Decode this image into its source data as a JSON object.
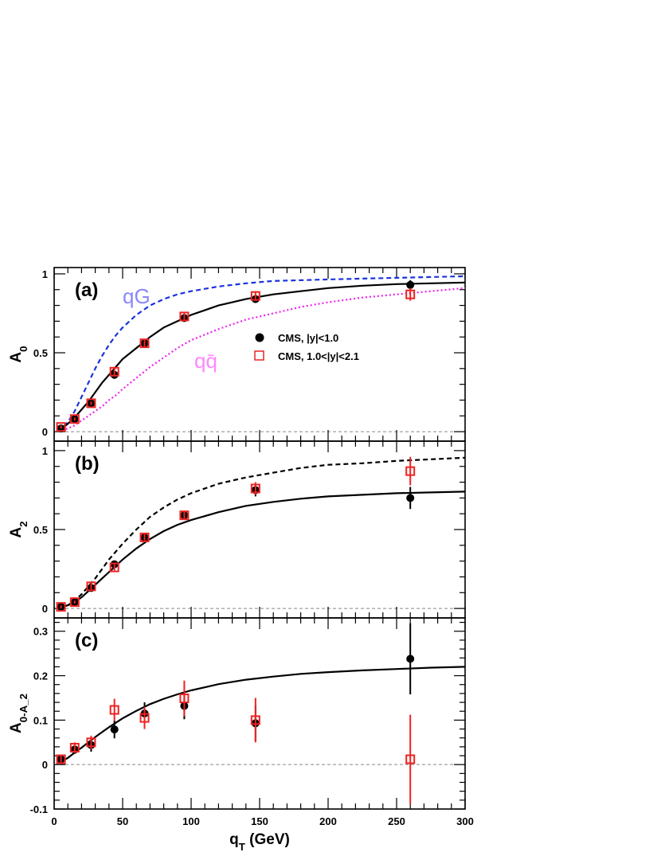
{
  "chart_data": {
    "type": "scatter",
    "xlabel": "q_T (GeV)",
    "xlim": [
      0,
      300
    ],
    "xticks": [
      "0",
      "50",
      "100",
      "150",
      "200",
      "250",
      "300"
    ],
    "colors": {
      "cms_central": "#000000",
      "cms_forward": "#ee2222",
      "qG": "#1a33dd",
      "qqbar": "#ee22ee",
      "fit": "#000000"
    },
    "legend": {
      "placement": "center-right of panel (a)",
      "entries": [
        {
          "label": "CMS, |y|<1.0",
          "marker": "filled-circle",
          "color": "#000000"
        },
        {
          "label": "CMS, 1.0<|y|<2.1",
          "marker": "open-square",
          "color": "#ee2222"
        }
      ]
    },
    "panels": [
      {
        "label": "(a)",
        "ylabel": "A_0",
        "ylim": [
          -0.06,
          1.04
        ],
        "yticks": [
          "0",
          "0.5",
          "1"
        ],
        "curves": [
          {
            "name": "qG",
            "style": "dashed",
            "color": "#1a33dd",
            "x": [
              3,
              10,
              15,
              20,
              25,
              30,
              35,
              40,
              45,
              50,
              60,
              70,
              80,
              90,
              100,
              120,
              140,
              160,
              180,
              200,
              225,
              250,
              275,
              300
            ],
            "y": [
              0,
              0.06,
              0.13,
              0.22,
              0.31,
              0.4,
              0.48,
              0.55,
              0.61,
              0.66,
              0.74,
              0.8,
              0.84,
              0.87,
              0.89,
              0.92,
              0.94,
              0.955,
              0.96,
              0.965,
              0.97,
              0.975,
              0.98,
              0.985
            ]
          },
          {
            "name": "qq̄",
            "style": "dotted",
            "color": "#ee22ee",
            "x": [
              3,
              10,
              15,
              20,
              25,
              30,
              35,
              40,
              45,
              50,
              60,
              70,
              80,
              90,
              100,
              120,
              140,
              160,
              180,
              200,
              225,
              250,
              275,
              300
            ],
            "y": [
              0,
              0.02,
              0.04,
              0.07,
              0.1,
              0.13,
              0.16,
              0.2,
              0.23,
              0.27,
              0.34,
              0.41,
              0.47,
              0.53,
              0.58,
              0.65,
              0.71,
              0.75,
              0.79,
              0.82,
              0.85,
              0.87,
              0.89,
              0.91
            ]
          },
          {
            "name": "",
            "style": "solid",
            "color": "#000000",
            "x": [
              3,
              10,
              15,
              20,
              25,
              30,
              35,
              40,
              45,
              50,
              60,
              70,
              80,
              90,
              100,
              120,
              140,
              160,
              180,
              200,
              225,
              250,
              275,
              300
            ],
            "y": [
              0,
              0.05,
              0.09,
              0.14,
              0.19,
              0.25,
              0.31,
              0.36,
              0.41,
              0.46,
              0.53,
              0.6,
              0.66,
              0.7,
              0.74,
              0.8,
              0.84,
              0.87,
              0.89,
              0.91,
              0.925,
              0.935,
              0.94,
              0.945
            ]
          }
        ],
        "series": [
          {
            "name": "CMS, |y|<1.0",
            "marker": "filled-circle",
            "color": "#000000",
            "points": [
              {
                "x": 5,
                "y": 0.02,
                "err": 0.01
              },
              {
                "x": 15,
                "y": 0.08,
                "err": 0.01
              },
              {
                "x": 27,
                "y": 0.18,
                "err": 0.01
              },
              {
                "x": 44,
                "y": 0.36,
                "err": 0.02
              },
              {
                "x": 66,
                "y": 0.56,
                "err": 0.02
              },
              {
                "x": 95,
                "y": 0.72,
                "err": 0.02
              },
              {
                "x": 147,
                "y": 0.84,
                "err": 0.02
              },
              {
                "x": 260,
                "y": 0.93,
                "err": 0.03
              }
            ]
          },
          {
            "name": "CMS, 1.0<|y|<2.1",
            "marker": "open-square",
            "color": "#ee2222",
            "points": [
              {
                "x": 5,
                "y": 0.03,
                "err": 0.01
              },
              {
                "x": 15,
                "y": 0.08,
                "err": 0.01
              },
              {
                "x": 27,
                "y": 0.18,
                "err": 0.01
              },
              {
                "x": 44,
                "y": 0.38,
                "err": 0.02
              },
              {
                "x": 66,
                "y": 0.56,
                "err": 0.02
              },
              {
                "x": 95,
                "y": 0.73,
                "err": 0.02
              },
              {
                "x": 147,
                "y": 0.86,
                "err": 0.03
              },
              {
                "x": 260,
                "y": 0.87,
                "err": 0.04
              }
            ]
          }
        ]
      },
      {
        "label": "(b)",
        "ylabel": "A_2",
        "ylim": [
          -0.06,
          1.06
        ],
        "yticks": [
          "0",
          "0.5",
          "1"
        ],
        "curves": [
          {
            "name": "",
            "style": "dashed",
            "color": "#000000",
            "x": [
              3,
              10,
              15,
              20,
              25,
              30,
              35,
              40,
              45,
              50,
              60,
              70,
              80,
              90,
              100,
              120,
              140,
              160,
              180,
              200,
              225,
              250,
              275,
              300
            ],
            "y": [
              0,
              0.02,
              0.05,
              0.09,
              0.14,
              0.19,
              0.25,
              0.31,
              0.36,
              0.41,
              0.5,
              0.58,
              0.64,
              0.69,
              0.73,
              0.79,
              0.83,
              0.86,
              0.89,
              0.91,
              0.92,
              0.935,
              0.945,
              0.955
            ]
          },
          {
            "name": "",
            "style": "solid",
            "color": "#000000",
            "x": [
              3,
              10,
              15,
              20,
              25,
              30,
              35,
              40,
              45,
              50,
              60,
              70,
              80,
              90,
              100,
              120,
              140,
              160,
              180,
              200,
              225,
              250,
              275,
              300
            ],
            "y": [
              0,
              0.02,
              0.04,
              0.07,
              0.11,
              0.15,
              0.19,
              0.23,
              0.27,
              0.31,
              0.38,
              0.44,
              0.49,
              0.53,
              0.56,
              0.61,
              0.65,
              0.675,
              0.695,
              0.71,
              0.72,
              0.73,
              0.735,
              0.74
            ]
          }
        ],
        "series": [
          {
            "name": "CMS, |y|<1.0",
            "marker": "filled-circle",
            "color": "#000000",
            "points": [
              {
                "x": 5,
                "y": 0.01,
                "err": 0.01
              },
              {
                "x": 15,
                "y": 0.04,
                "err": 0.01
              },
              {
                "x": 27,
                "y": 0.13,
                "err": 0.02
              },
              {
                "x": 44,
                "y": 0.28,
                "err": 0.02
              },
              {
                "x": 66,
                "y": 0.45,
                "err": 0.02
              },
              {
                "x": 95,
                "y": 0.59,
                "err": 0.03
              },
              {
                "x": 147,
                "y": 0.75,
                "err": 0.04
              },
              {
                "x": 260,
                "y": 0.7,
                "err": 0.07
              }
            ]
          },
          {
            "name": "CMS, 1.0<|y|<2.1",
            "marker": "open-square",
            "color": "#ee2222",
            "points": [
              {
                "x": 5,
                "y": 0.01,
                "err": 0.01
              },
              {
                "x": 15,
                "y": 0.04,
                "err": 0.01
              },
              {
                "x": 27,
                "y": 0.14,
                "err": 0.02
              },
              {
                "x": 44,
                "y": 0.26,
                "err": 0.02
              },
              {
                "x": 66,
                "y": 0.45,
                "err": 0.02
              },
              {
                "x": 95,
                "y": 0.59,
                "err": 0.03
              },
              {
                "x": 147,
                "y": 0.76,
                "err": 0.04
              },
              {
                "x": 260,
                "y": 0.87,
                "err": 0.09
              }
            ]
          }
        ]
      },
      {
        "label": "(c)",
        "ylabel": "A_0-A_2",
        "ylim": [
          -0.1,
          0.33
        ],
        "yticks": [
          "-0.1",
          "0",
          "0.1",
          "0.2",
          "0.3"
        ],
        "curves": [
          {
            "name": "",
            "style": "solid",
            "color": "#000000",
            "x": [
              3,
              10,
              15,
              20,
              25,
              30,
              35,
              40,
              45,
              50,
              60,
              70,
              80,
              90,
              100,
              120,
              140,
              160,
              180,
              200,
              225,
              250,
              275,
              300
            ],
            "y": [
              0.003,
              0.015,
              0.027,
              0.038,
              0.05,
              0.062,
              0.073,
              0.084,
              0.094,
              0.104,
              0.121,
              0.136,
              0.148,
              0.158,
              0.167,
              0.181,
              0.191,
              0.198,
              0.204,
              0.208,
              0.212,
              0.215,
              0.218,
              0.22
            ]
          }
        ],
        "series": [
          {
            "name": "CMS, |y|<1.0",
            "marker": "filled-circle",
            "color": "#000000",
            "points": [
              {
                "x": 5,
                "y": 0.012,
                "err": 0.008
              },
              {
                "x": 15,
                "y": 0.034,
                "err": 0.01
              },
              {
                "x": 27,
                "y": 0.044,
                "err": 0.015
              },
              {
                "x": 44,
                "y": 0.079,
                "err": 0.02
              },
              {
                "x": 66,
                "y": 0.115,
                "err": 0.025
              },
              {
                "x": 95,
                "y": 0.132,
                "err": 0.03
              },
              {
                "x": 147,
                "y": 0.093,
                "err": 0.04
              },
              {
                "x": 260,
                "y": 0.238,
                "err": 0.08
              }
            ]
          },
          {
            "name": "CMS, 1.0<|y|<2.1",
            "marker": "open-square",
            "color": "#ee2222",
            "points": [
              {
                "x": 5,
                "y": 0.012,
                "err": 0.01
              },
              {
                "x": 15,
                "y": 0.038,
                "err": 0.012
              },
              {
                "x": 27,
                "y": 0.05,
                "err": 0.015
              },
              {
                "x": 44,
                "y": 0.123,
                "err": 0.025
              },
              {
                "x": 66,
                "y": 0.105,
                "err": 0.025
              },
              {
                "x": 95,
                "y": 0.149,
                "err": 0.04
              },
              {
                "x": 147,
                "y": 0.1,
                "err": 0.05
              },
              {
                "x": 260,
                "y": 0.012,
                "err": 0.1
              }
            ]
          }
        ]
      }
    ],
    "annotations": [
      {
        "panel": "(a)",
        "text": "qG",
        "color": "#8888ff"
      },
      {
        "panel": "(a)",
        "text": "qq̄",
        "color": "#ff88ff"
      }
    ]
  }
}
